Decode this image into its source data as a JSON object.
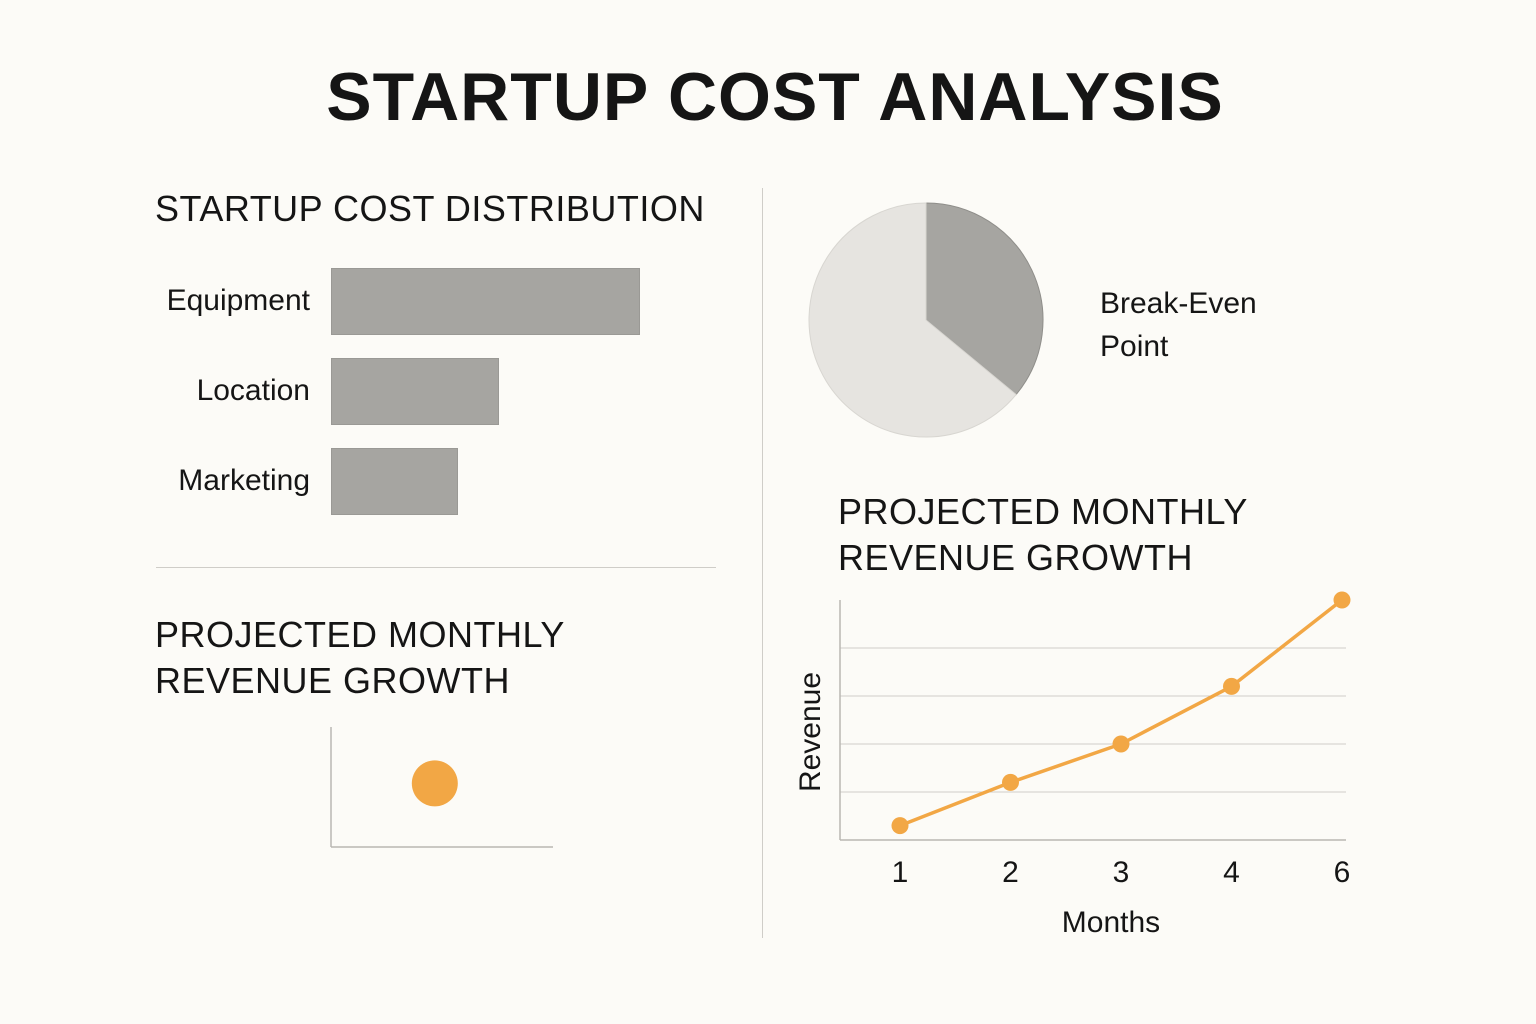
{
  "title": "STARTUP COST ANALYSIS",
  "bar_section": {
    "heading": "STARTUP COST DISTRIBUTION"
  },
  "pie_section": {
    "legend": "Break-Even Point"
  },
  "small_chart": {
    "heading_line1": "PROJECTED MONTHLY",
    "heading_line2": "REVENUE GROWTH"
  },
  "line_section": {
    "heading_line1": "PROJECTED MONTHLY",
    "heading_line2": "REVENUE GROWTH"
  },
  "colors": {
    "bar": "#a6a5a1",
    "pie_dark": "#a6a5a1",
    "pie_light": "#e6e4e0",
    "accent": "#f2a745"
  },
  "chart_data": [
    {
      "type": "bar",
      "orientation": "horizontal",
      "title": "STARTUP COST DISTRIBUTION",
      "categories": [
        "Equipment",
        "Location",
        "Marketing"
      ],
      "values": [
        100,
        54.5,
        41
      ],
      "xlabel": "",
      "ylabel": "",
      "grid": false
    },
    {
      "type": "pie",
      "title": "",
      "labels": [
        "Break-Even Point",
        ""
      ],
      "values": [
        36,
        64
      ],
      "legend_position": "right"
    },
    {
      "type": "scatter",
      "title": "PROJECTED MONTHLY REVENUE GROWTH",
      "points": [
        {
          "x": 0.47,
          "y": 0.53
        }
      ],
      "xlabel": "",
      "ylabel": "",
      "grid": false
    },
    {
      "type": "line",
      "title": "PROJECTED MONTHLY REVENUE GROWTH",
      "x": [
        "1",
        "2",
        "3",
        "4",
        "6"
      ],
      "series": [
        {
          "values": [
            0.3,
            1.2,
            2.0,
            3.2,
            5.0
          ]
        }
      ],
      "xlabel": "Months",
      "ylabel": "Revenue",
      "ylim": [
        0,
        5
      ],
      "grid": true
    }
  ]
}
